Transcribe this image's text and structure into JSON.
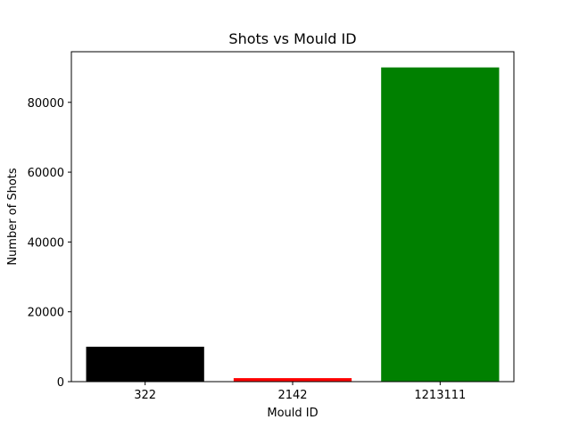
{
  "chart_data": {
    "type": "bar",
    "title": "Shots vs Mould ID",
    "xlabel": "Mould ID",
    "ylabel": "Number of Shots",
    "categories": [
      "322",
      "2142",
      "1213111"
    ],
    "values": [
      10000,
      1000,
      90000
    ],
    "colors": [
      "#000000",
      "#ff0000",
      "#008000"
    ],
    "ylim": [
      0,
      94500
    ],
    "yticks": [
      0,
      20000,
      40000,
      60000,
      80000
    ],
    "grid": false,
    "legend": "none"
  }
}
